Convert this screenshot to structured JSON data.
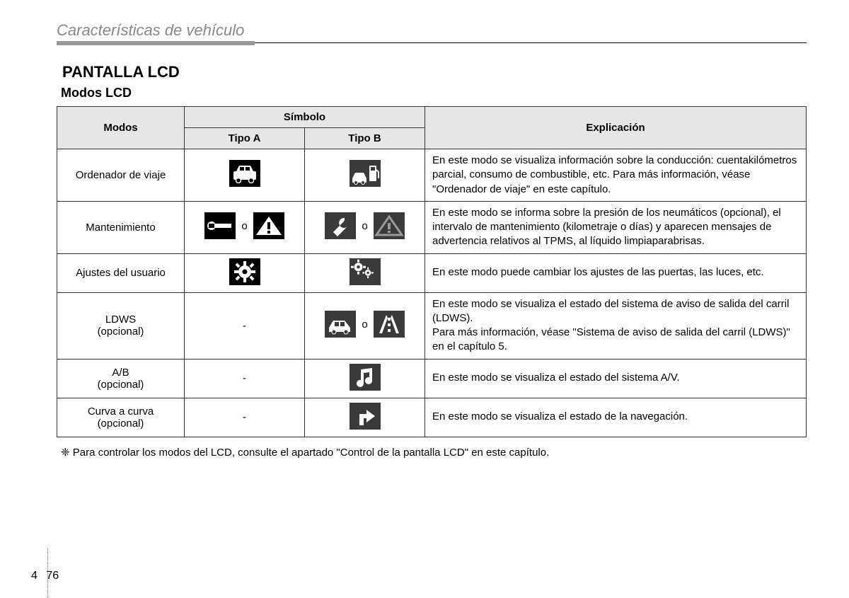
{
  "header": {
    "section_title": "Características de vehículo",
    "h1": "PANTALLA LCD",
    "h2": "Modos LCD"
  },
  "table": {
    "headers": {
      "modes": "Modos",
      "symbol": "Símbolo",
      "type_a": "Tipo A",
      "type_b": "Tipo B",
      "explanation": "Explicación"
    },
    "or_separator": "o",
    "rows": [
      {
        "mode": "Ordenador de viaje",
        "type_a": {
          "icons": [
            "car"
          ],
          "style": "black"
        },
        "type_b": {
          "icons": [
            "car-fuel"
          ],
          "style": "dark"
        },
        "explanation": "En este modo se visualiza información sobre la conducción: cuentakilómetros parcial, consumo de combustible, etc. Para más información, véase \"Ordenador de viaje\" en este capítulo."
      },
      {
        "mode": "Mantenimiento",
        "type_a": {
          "icons": [
            "wrench-h",
            "warning"
          ],
          "style": "black"
        },
        "type_b": {
          "icons": [
            "wrench",
            "warning-outline"
          ],
          "style": "dark"
        },
        "explanation": "En este modo se informa sobre la presión de los neumáticos (opcional), el intervalo de mantenimiento (kilometraje o días) y aparecen mensajes de advertencia relativos al TPMS, al líquido limpiaparabrisas."
      },
      {
        "mode": "Ajustes del usuario",
        "type_a": {
          "icons": [
            "gear"
          ],
          "style": "black"
        },
        "type_b": {
          "icons": [
            "gear-double"
          ],
          "style": "dark"
        },
        "explanation": "En este modo puede cambiar los ajustes de las puertas, las luces, etc."
      },
      {
        "mode": "LDWS\n(opcional)",
        "type_a": {
          "text": "-"
        },
        "type_b": {
          "icons": [
            "car-side",
            "lane"
          ],
          "style": "dark"
        },
        "explanation": "En este modo se visualiza el estado del sistema de aviso de salida del carril (LDWS).\nPara más información, véase \"Sistema de aviso de salida del carril (LDWS)\" en el capítulo 5."
      },
      {
        "mode": "A/B\n(opcional)",
        "type_a": {
          "text": "-"
        },
        "type_b": {
          "icons": [
            "music"
          ],
          "style": "dark"
        },
        "explanation": "En este modo se visualiza el estado del sistema A/V."
      },
      {
        "mode": "Curva a curva\n(opcional)",
        "type_a": {
          "text": "-"
        },
        "type_b": {
          "icons": [
            "arrow-turn"
          ],
          "style": "dark"
        },
        "explanation": "En este modo se visualiza el estado de la navegación."
      }
    ]
  },
  "footnote": "❈ Para controlar los modos del LCD, consulte el apartado \"Control de la pantalla LCD\" en este capítulo.",
  "page_number": {
    "chapter": "4",
    "page": "76"
  },
  "colors": {
    "header_bg": "#e6e6e6",
    "border": "#333333",
    "icon_black": "#000000",
    "icon_dark": "#3a3a3a",
    "icon_fg": "#ffffff",
    "section_gray": "#888888"
  }
}
